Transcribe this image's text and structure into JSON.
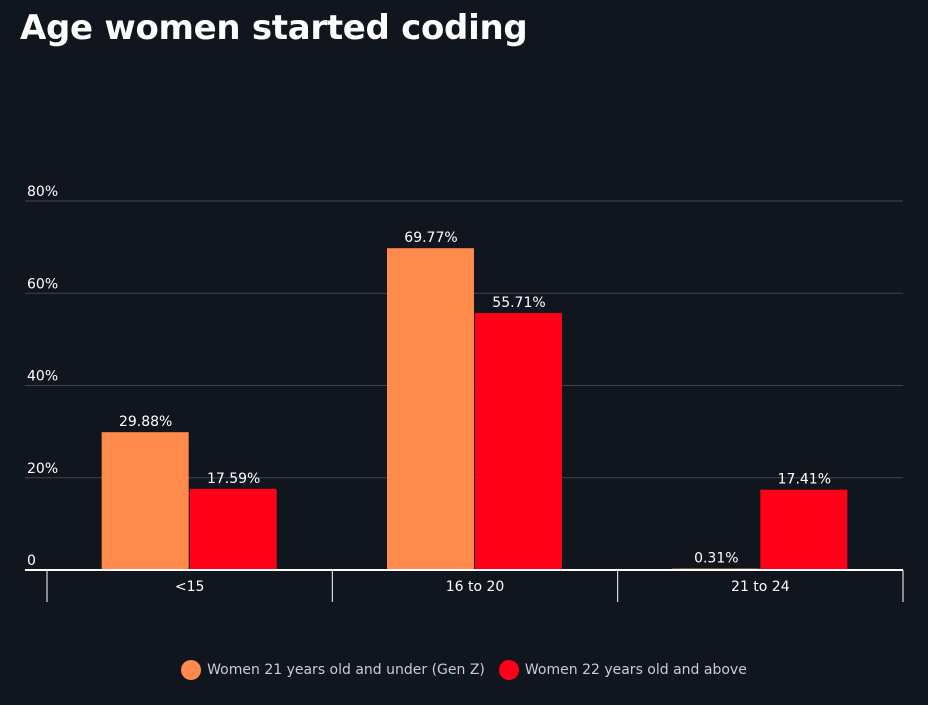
{
  "chart_data": {
    "type": "bar",
    "title": "Age women started coding",
    "categories": [
      "<15",
      "16 to 20",
      "21 to 24"
    ],
    "series": [
      {
        "name": "Women 21 years old and under (Gen Z)",
        "values": [
          29.88,
          69.77,
          0.31
        ],
        "labels": [
          "29.88%",
          "69.77%",
          "0.31%"
        ],
        "color": "#ff8a4c"
      },
      {
        "name": "Women 22 years old and above",
        "values": [
          17.59,
          55.71,
          17.41
        ],
        "labels": [
          "17.59%",
          "55.71%",
          "17.41%"
        ],
        "color": "#ff0019"
      }
    ],
    "y_ticks": [
      "0",
      "20%",
      "40%",
      "60%",
      "80%"
    ],
    "y_tick_values": [
      0,
      20,
      40,
      60,
      80
    ],
    "ylim": [
      0,
      80
    ],
    "xlabel": "",
    "ylabel": "",
    "grid": true,
    "legend_position": "bottom-center",
    "background_color": "#11151e"
  }
}
